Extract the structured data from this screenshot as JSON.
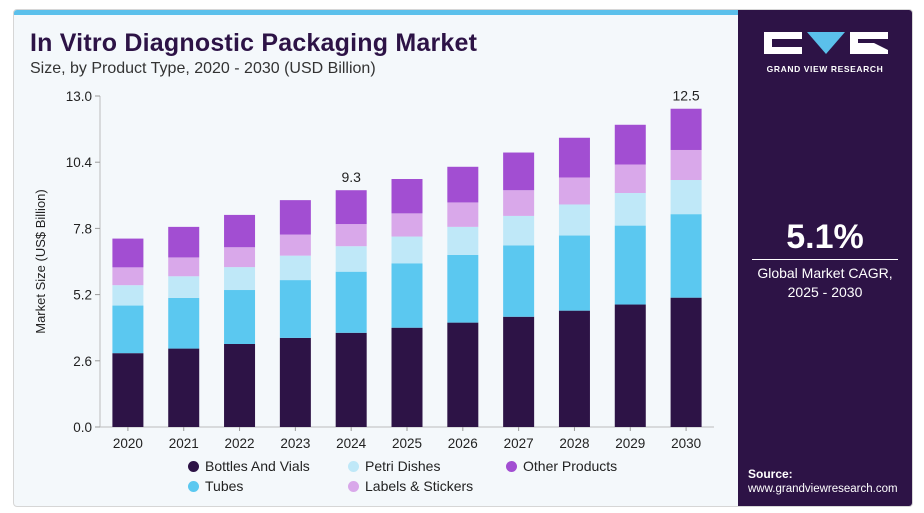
{
  "title": "In Vitro Diagnostic Packaging Market",
  "subtitle": "Size, by Product Type, 2020 - 2030 (USD Billion)",
  "brand": {
    "name": "GRAND VIEW RESEARCH"
  },
  "cagr": {
    "value": "5.1%",
    "label_line1": "Global Market CAGR,",
    "label_line2": "2025 - 2030"
  },
  "source": {
    "label": "Source:",
    "url": "www.grandviewresearch.com"
  },
  "colors": {
    "bottles_and_vials": "#2d1346",
    "tubes": "#5bc8f0",
    "petri_dishes": "#bfe8f8",
    "labels_and_stickers": "#d9a8ea",
    "other_products": "#a24ed2",
    "sidebar": "#2d1346",
    "accent": "#5bc0eb"
  },
  "legend": [
    {
      "name": "Bottles And Vials",
      "color": "#2d1346"
    },
    {
      "name": "Petri Dishes",
      "color": "#bfe8f8"
    },
    {
      "name": "Other Products",
      "color": "#a24ed2"
    },
    {
      "name": "Tubes",
      "color": "#5bc8f0"
    },
    {
      "name": "Labels & Stickers",
      "color": "#d9a8ea"
    }
  ],
  "chart_data": {
    "type": "bar",
    "stacked": true,
    "title": "In Vitro Diagnostic Packaging Market",
    "subtitle": "Size, by Product Type, 2020 - 2030 (USD Billion)",
    "xlabel": "",
    "ylabel": "Market Size (US$ Billion)",
    "ylim": [
      0,
      13
    ],
    "yticks": [
      "0.0",
      "2.6",
      "5.2",
      "7.8",
      "10.4",
      "13.0"
    ],
    "grid": false,
    "legend_position": "bottom",
    "categories": [
      "2020",
      "2021",
      "2022",
      "2023",
      "2024",
      "2025",
      "2026",
      "2027",
      "2028",
      "2029",
      "2030"
    ],
    "series": [
      {
        "name": "Bottles And Vials",
        "color": "#2d1346",
        "values": [
          2.9,
          3.08,
          3.26,
          3.5,
          3.7,
          3.9,
          4.1,
          4.33,
          4.57,
          4.81,
          5.08
        ]
      },
      {
        "name": "Tubes",
        "color": "#5bc8f0",
        "values": [
          1.87,
          1.99,
          2.12,
          2.27,
          2.4,
          2.53,
          2.66,
          2.8,
          2.95,
          3.1,
          3.28
        ]
      },
      {
        "name": "Petri Dishes",
        "color": "#bfe8f8",
        "values": [
          0.8,
          0.85,
          0.9,
          0.96,
          1.0,
          1.05,
          1.1,
          1.16,
          1.22,
          1.28,
          1.34
        ]
      },
      {
        "name": "Labels & Stickers",
        "color": "#d9a8ea",
        "values": [
          0.7,
          0.74,
          0.78,
          0.83,
          0.87,
          0.91,
          0.96,
          1.01,
          1.06,
          1.12,
          1.18
        ]
      },
      {
        "name": "Other Products",
        "color": "#a24ed2",
        "values": [
          1.13,
          1.2,
          1.27,
          1.35,
          1.33,
          1.35,
          1.4,
          1.48,
          1.56,
          1.56,
          1.62
        ]
      }
    ],
    "annotations": [
      {
        "category": "2024",
        "text": "9.3"
      },
      {
        "category": "2030",
        "text": "12.5"
      }
    ]
  }
}
